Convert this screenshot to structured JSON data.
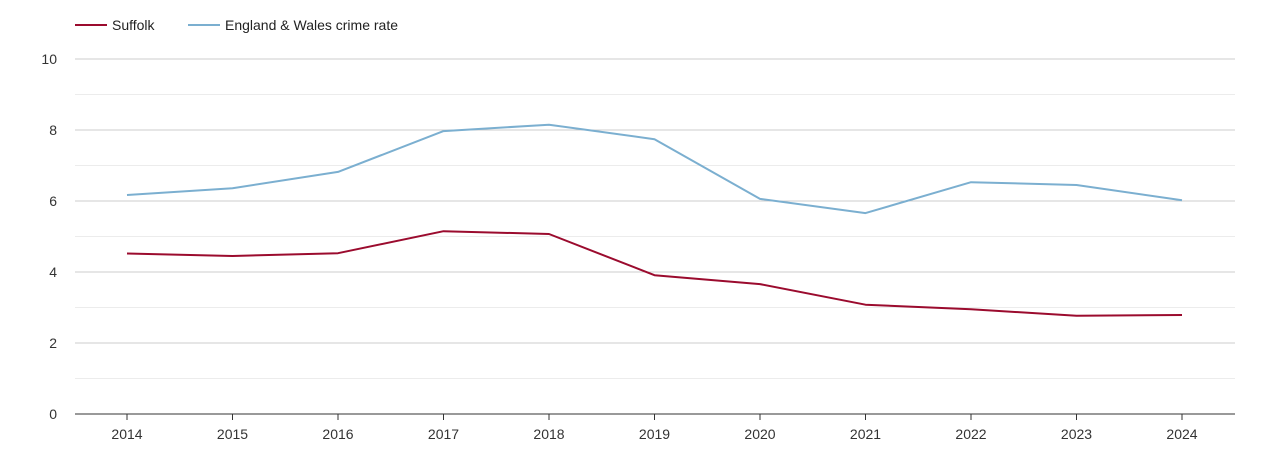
{
  "chart_data": {
    "type": "line",
    "title": "",
    "xlabel": "",
    "ylabel": "",
    "categories": [
      "2014",
      "2015",
      "2016",
      "2017",
      "2018",
      "2019",
      "2020",
      "2021",
      "2022",
      "2023",
      "2024"
    ],
    "ylim": [
      0,
      10
    ],
    "y_ticks": [
      "0",
      "2",
      "4",
      "6",
      "8",
      "10"
    ],
    "y_tick_values": [
      0,
      2,
      4,
      6,
      8,
      10
    ],
    "grid": true,
    "legend_position": "top-left",
    "series": [
      {
        "name": "Suffolk",
        "color": "#9b0b2e",
        "values": [
          4.52,
          4.45,
          4.53,
          5.15,
          5.07,
          3.91,
          3.66,
          3.08,
          2.95,
          2.77,
          2.79
        ]
      },
      {
        "name": "England & Wales crime rate",
        "color": "#7bafd0",
        "values": [
          6.17,
          6.36,
          6.82,
          7.97,
          8.15,
          7.74,
          6.06,
          5.66,
          6.53,
          6.45,
          6.02
        ]
      }
    ]
  }
}
